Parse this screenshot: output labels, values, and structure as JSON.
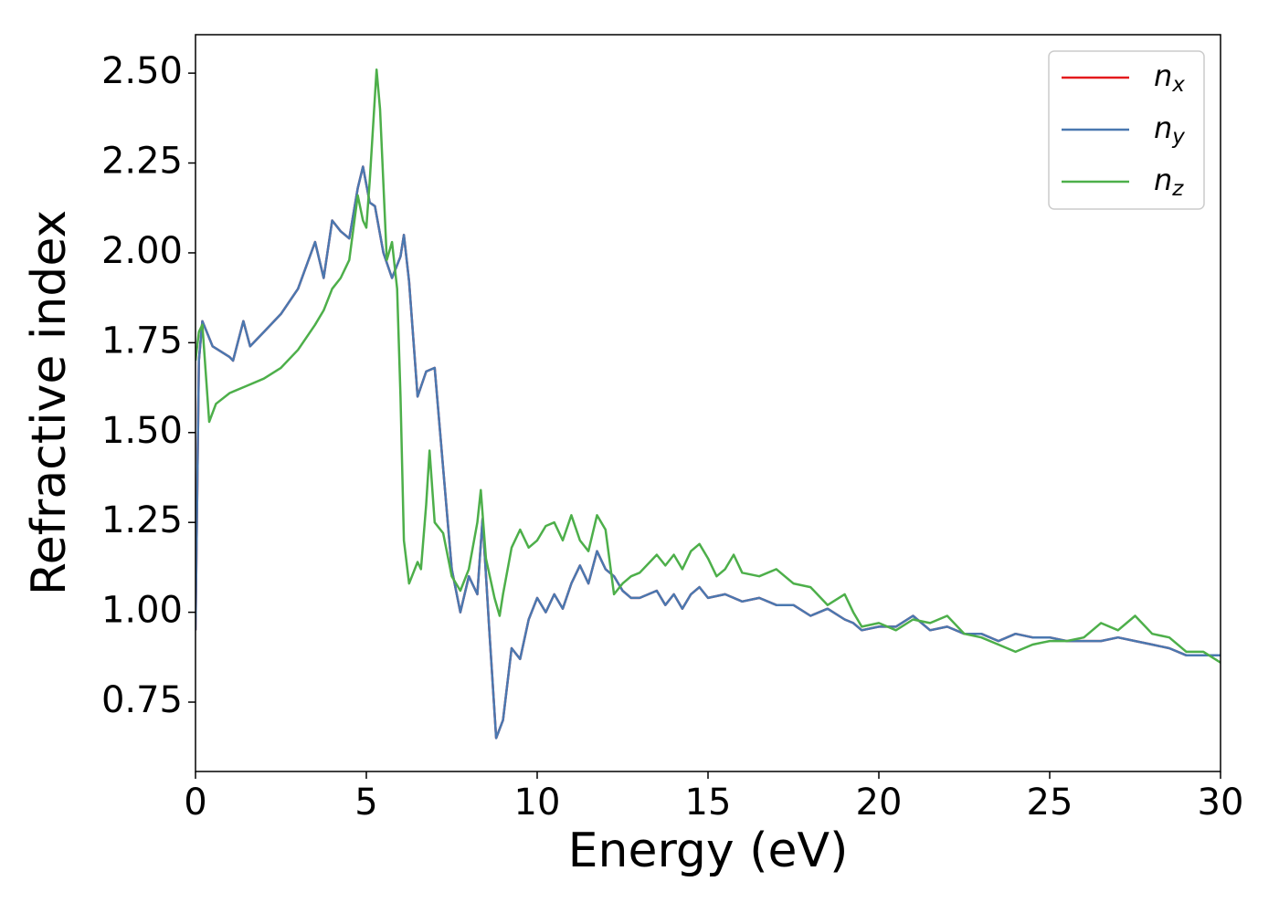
{
  "chart_data": {
    "type": "line",
    "xlabel": "Energy (eV)",
    "ylabel": "Refractive index",
    "xlim": [
      0,
      30
    ],
    "xticks": [
      0,
      5,
      10,
      15,
      20,
      25,
      30
    ],
    "ylim": [
      0.557,
      2.607
    ],
    "yticks": [
      {
        "value": 0.75,
        "label": "0.75"
      },
      {
        "value": 1.0,
        "label": "1.00"
      },
      {
        "value": 1.25,
        "label": "1.25"
      },
      {
        "value": 1.5,
        "label": "1.50"
      },
      {
        "value": 1.75,
        "label": "1.75"
      },
      {
        "value": 2.0,
        "label": "2.00"
      },
      {
        "value": 2.25,
        "label": "2.25"
      },
      {
        "value": 2.5,
        "label": "2.50"
      }
    ],
    "legend": "upper right",
    "series": [
      {
        "name": "n_x",
        "color": "#e41a1c",
        "x": [
          0,
          0.1,
          0.2,
          0.5,
          1.0,
          1.1,
          1.4,
          1.6,
          2.0,
          2.5,
          3.0,
          3.5,
          3.75,
          4.0,
          4.25,
          4.5,
          4.75,
          4.9,
          5.1,
          5.25,
          5.5,
          5.75,
          6.0,
          6.1,
          6.25,
          6.5,
          6.75,
          7.0,
          7.25,
          7.5,
          7.75,
          8.0,
          8.25,
          8.4,
          8.6,
          8.8,
          9.0,
          9.25,
          9.5,
          9.75,
          10.0,
          10.25,
          10.5,
          10.75,
          11.0,
          11.25,
          11.5,
          11.75,
          12.0,
          12.25,
          12.5,
          12.75,
          13.0,
          13.5,
          13.75,
          14.0,
          14.25,
          14.5,
          14.75,
          15.0,
          15.5,
          16.0,
          16.5,
          17.0,
          17.5,
          18.0,
          18.5,
          19.0,
          19.25,
          19.5,
          20.0,
          20.5,
          21.0,
          21.5,
          22.0,
          22.5,
          23.0,
          23.5,
          24.0,
          24.5,
          25.0,
          25.5,
          26.0,
          26.5,
          27.0,
          27.5,
          28.0,
          28.5,
          29.0,
          29.5,
          30.0
        ],
        "values": [
          0.95,
          1.7,
          1.81,
          1.74,
          1.71,
          1.7,
          1.81,
          1.74,
          1.78,
          1.83,
          1.9,
          2.03,
          1.93,
          2.09,
          2.06,
          2.04,
          2.18,
          2.24,
          2.14,
          2.13,
          2.0,
          1.93,
          1.99,
          2.05,
          1.92,
          1.6,
          1.67,
          1.68,
          1.4,
          1.12,
          1.0,
          1.1,
          1.05,
          1.26,
          0.95,
          0.65,
          0.7,
          0.9,
          0.87,
          0.98,
          1.04,
          1.0,
          1.05,
          1.01,
          1.08,
          1.13,
          1.08,
          1.17,
          1.12,
          1.1,
          1.06,
          1.04,
          1.04,
          1.06,
          1.02,
          1.05,
          1.01,
          1.05,
          1.07,
          1.04,
          1.05,
          1.03,
          1.04,
          1.02,
          1.02,
          0.99,
          1.01,
          0.98,
          0.97,
          0.95,
          0.96,
          0.96,
          0.99,
          0.95,
          0.96,
          0.94,
          0.94,
          0.92,
          0.94,
          0.93,
          0.93,
          0.92,
          0.92,
          0.92,
          0.93,
          0.92,
          0.91,
          0.9,
          0.88,
          0.88,
          0.88
        ]
      },
      {
        "name": "n_y",
        "color": "#4a78b0",
        "x": [
          0,
          0.1,
          0.2,
          0.5,
          1.0,
          1.1,
          1.4,
          1.6,
          2.0,
          2.5,
          3.0,
          3.5,
          3.75,
          4.0,
          4.25,
          4.5,
          4.75,
          4.9,
          5.1,
          5.25,
          5.5,
          5.75,
          6.0,
          6.1,
          6.25,
          6.5,
          6.75,
          7.0,
          7.25,
          7.5,
          7.75,
          8.0,
          8.25,
          8.4,
          8.6,
          8.8,
          9.0,
          9.25,
          9.5,
          9.75,
          10.0,
          10.25,
          10.5,
          10.75,
          11.0,
          11.25,
          11.5,
          11.75,
          12.0,
          12.25,
          12.5,
          12.75,
          13.0,
          13.5,
          13.75,
          14.0,
          14.25,
          14.5,
          14.75,
          15.0,
          15.5,
          16.0,
          16.5,
          17.0,
          17.5,
          18.0,
          18.5,
          19.0,
          19.25,
          19.5,
          20.0,
          20.5,
          21.0,
          21.5,
          22.0,
          22.5,
          23.0,
          23.5,
          24.0,
          24.5,
          25.0,
          25.5,
          26.0,
          26.5,
          27.0,
          27.5,
          28.0,
          28.5,
          29.0,
          29.5,
          30.0
        ],
        "values": [
          0.95,
          1.7,
          1.81,
          1.74,
          1.71,
          1.7,
          1.81,
          1.74,
          1.78,
          1.83,
          1.9,
          2.03,
          1.93,
          2.09,
          2.06,
          2.04,
          2.18,
          2.24,
          2.14,
          2.13,
          2.0,
          1.93,
          1.99,
          2.05,
          1.92,
          1.6,
          1.67,
          1.68,
          1.4,
          1.12,
          1.0,
          1.1,
          1.05,
          1.26,
          0.95,
          0.65,
          0.7,
          0.9,
          0.87,
          0.98,
          1.04,
          1.0,
          1.05,
          1.01,
          1.08,
          1.13,
          1.08,
          1.17,
          1.12,
          1.1,
          1.06,
          1.04,
          1.04,
          1.06,
          1.02,
          1.05,
          1.01,
          1.05,
          1.07,
          1.04,
          1.05,
          1.03,
          1.04,
          1.02,
          1.02,
          0.99,
          1.01,
          0.98,
          0.97,
          0.95,
          0.96,
          0.96,
          0.99,
          0.95,
          0.96,
          0.94,
          0.94,
          0.92,
          0.94,
          0.93,
          0.93,
          0.92,
          0.92,
          0.92,
          0.93,
          0.92,
          0.91,
          0.9,
          0.88,
          0.88,
          0.88
        ]
      },
      {
        "name": "n_z",
        "color": "#4daf4a",
        "x": [
          0,
          0.1,
          0.2,
          0.4,
          0.6,
          1.0,
          1.5,
          2.0,
          2.5,
          3.0,
          3.5,
          3.75,
          4.0,
          4.25,
          4.5,
          4.75,
          4.9,
          5.0,
          5.1,
          5.3,
          5.4,
          5.6,
          5.75,
          5.9,
          6.0,
          6.1,
          6.25,
          6.5,
          6.6,
          6.75,
          6.85,
          7.0,
          7.25,
          7.5,
          7.75,
          8.0,
          8.25,
          8.35,
          8.5,
          8.75,
          8.9,
          9.0,
          9.25,
          9.5,
          9.75,
          10.0,
          10.25,
          10.5,
          10.75,
          11.0,
          11.25,
          11.5,
          11.75,
          12.0,
          12.25,
          12.5,
          12.75,
          13.0,
          13.5,
          13.75,
          14.0,
          14.25,
          14.5,
          14.75,
          15.0,
          15.25,
          15.5,
          15.75,
          16.0,
          16.5,
          17.0,
          17.5,
          18.0,
          18.5,
          19.0,
          19.25,
          19.5,
          20.0,
          20.5,
          21.0,
          21.5,
          22.0,
          22.5,
          23.0,
          23.5,
          24.0,
          24.5,
          25.0,
          25.5,
          26.0,
          26.5,
          27.0,
          27.5,
          28.0,
          28.5,
          29.0,
          29.5,
          30.0
        ],
        "values": [
          1.7,
          1.78,
          1.8,
          1.53,
          1.58,
          1.61,
          1.63,
          1.65,
          1.68,
          1.73,
          1.8,
          1.84,
          1.9,
          1.93,
          1.98,
          2.16,
          2.09,
          2.07,
          2.2,
          2.51,
          2.4,
          1.98,
          2.03,
          1.9,
          1.6,
          1.2,
          1.08,
          1.14,
          1.12,
          1.3,
          1.45,
          1.25,
          1.22,
          1.1,
          1.06,
          1.12,
          1.25,
          1.34,
          1.15,
          1.04,
          0.99,
          1.05,
          1.18,
          1.23,
          1.18,
          1.2,
          1.24,
          1.25,
          1.2,
          1.27,
          1.2,
          1.17,
          1.27,
          1.23,
          1.05,
          1.08,
          1.1,
          1.11,
          1.16,
          1.13,
          1.16,
          1.12,
          1.17,
          1.19,
          1.15,
          1.1,
          1.12,
          1.16,
          1.11,
          1.1,
          1.12,
          1.08,
          1.07,
          1.02,
          1.05,
          1.0,
          0.96,
          0.97,
          0.95,
          0.98,
          0.97,
          0.99,
          0.94,
          0.93,
          0.91,
          0.89,
          0.91,
          0.92,
          0.92,
          0.93,
          0.97,
          0.95,
          0.99,
          0.94,
          0.93,
          0.89,
          0.89,
          0.86
        ]
      }
    ]
  }
}
